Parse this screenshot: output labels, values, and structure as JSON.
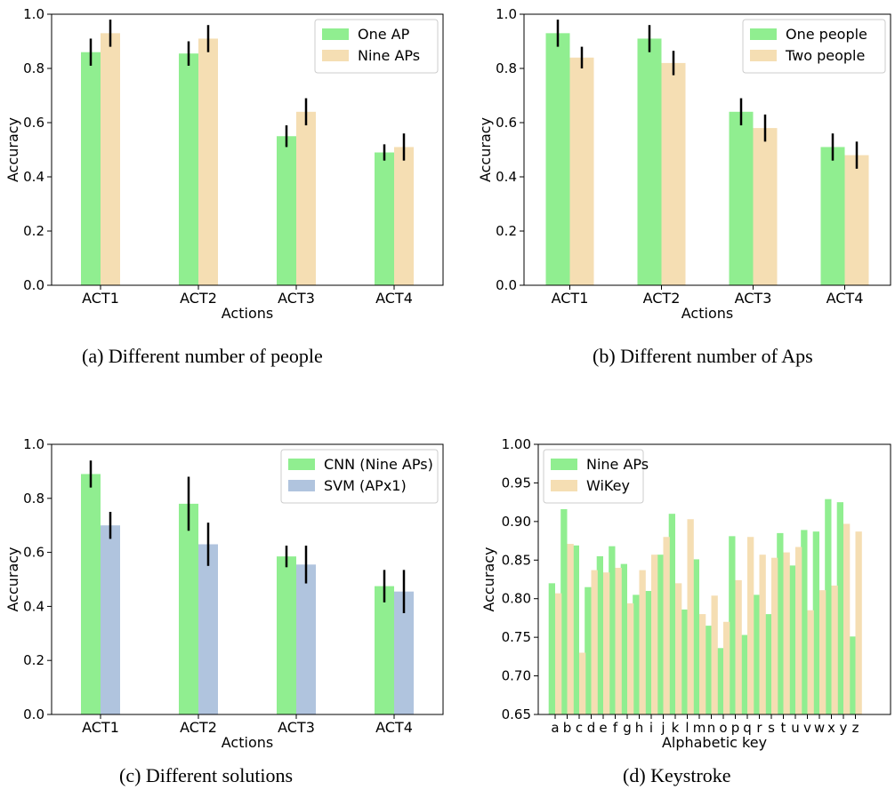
{
  "chart_data": [
    {
      "type": "bar",
      "caption": "(a) Different number of people",
      "xlabel": "Actions",
      "ylabel": "Accuracy",
      "ylim": [
        0,
        1.0
      ],
      "yticks": [
        "0.0",
        "0.2",
        "0.4",
        "0.6",
        "0.8",
        "1.0"
      ],
      "ytick_values": [
        0,
        0.2,
        0.4,
        0.6,
        0.8,
        1.0
      ],
      "categories": [
        "ACT1",
        "ACT2",
        "ACT3",
        "ACT4"
      ],
      "legend_position": "top-right",
      "series": [
        {
          "name": "One AP",
          "color": "#90EE90",
          "values": [
            0.86,
            0.855,
            0.55,
            0.49
          ],
          "errors": [
            0.05,
            0.045,
            0.04,
            0.03
          ]
        },
        {
          "name": "Nine APs",
          "color": "#F5DEB3",
          "values": [
            0.93,
            0.91,
            0.64,
            0.51
          ],
          "errors": [
            0.05,
            0.05,
            0.05,
            0.05
          ]
        }
      ]
    },
    {
      "type": "bar",
      "caption": "(b) Different number of Aps",
      "xlabel": "Actions",
      "ylabel": "Accuracy",
      "ylim": [
        0,
        1.0
      ],
      "yticks": [
        "0.0",
        "0.2",
        "0.4",
        "0.6",
        "0.8",
        "1.0"
      ],
      "ytick_values": [
        0,
        0.2,
        0.4,
        0.6,
        0.8,
        1.0
      ],
      "categories": [
        "ACT1",
        "ACT2",
        "ACT3",
        "ACT4"
      ],
      "legend_position": "top-right",
      "series": [
        {
          "name": "One people",
          "color": "#90EE90",
          "values": [
            0.93,
            0.91,
            0.64,
            0.51
          ],
          "errors": [
            0.05,
            0.05,
            0.05,
            0.05
          ]
        },
        {
          "name": "Two people",
          "color": "#F5DEB3",
          "values": [
            0.84,
            0.82,
            0.58,
            0.48
          ],
          "errors": [
            0.04,
            0.045,
            0.05,
            0.05
          ]
        }
      ]
    },
    {
      "type": "bar",
      "caption": "(c) Different solutions",
      "xlabel": "Actions",
      "ylabel": "Accuracy",
      "ylim": [
        0,
        1.0
      ],
      "yticks": [
        "0.0",
        "0.2",
        "0.4",
        "0.6",
        "0.8",
        "1.0"
      ],
      "ytick_values": [
        0,
        0.2,
        0.4,
        0.6,
        0.8,
        1.0
      ],
      "categories": [
        "ACT1",
        "ACT2",
        "ACT3",
        "ACT4"
      ],
      "legend_position": "top-right",
      "series": [
        {
          "name": "CNN (Nine APs)",
          "color": "#90EE90",
          "values": [
            0.89,
            0.78,
            0.585,
            0.475
          ],
          "errors": [
            0.05,
            0.1,
            0.04,
            0.06
          ]
        },
        {
          "name": "SVM (APx1)",
          "color": "#B0C4DE",
          "values": [
            0.7,
            0.63,
            0.555,
            0.455
          ],
          "errors": [
            0.05,
            0.08,
            0.07,
            0.08
          ]
        }
      ]
    },
    {
      "type": "bar",
      "caption": "(d) Keystroke",
      "xlabel": "Alphabetic key",
      "ylabel": "Accuracy",
      "ylim": [
        0.65,
        1.0
      ],
      "yticks": [
        "0.65",
        "0.70",
        "0.75",
        "0.80",
        "0.85",
        "0.90",
        "0.95",
        "1.00"
      ],
      "ytick_values": [
        0.65,
        0.7,
        0.75,
        0.8,
        0.85,
        0.9,
        0.95,
        1.0
      ],
      "categories": [
        "a",
        "b",
        "c",
        "d",
        "e",
        "f",
        "g",
        "h",
        "i",
        "j",
        "k",
        "l",
        "m",
        "n",
        "o",
        "p",
        "q",
        "r",
        "s",
        "t",
        "u",
        "v",
        "w",
        "x",
        "y",
        "z"
      ],
      "legend_position": "top-left",
      "series": [
        {
          "name": "Nine APs",
          "color": "#90EE90",
          "values": [
            0.82,
            0.916,
            0.869,
            0.815,
            0.855,
            0.868,
            0.845,
            0.805,
            0.81,
            0.857,
            0.91,
            0.786,
            0.851,
            0.765,
            0.736,
            0.881,
            0.753,
            0.805,
            0.78,
            0.885,
            0.843,
            0.889,
            0.887,
            0.929,
            0.925,
            0.751
          ]
        },
        {
          "name": "WiKey",
          "color": "#F5DEB3",
          "values": [
            0.807,
            0.871,
            0.73,
            0.837,
            0.834,
            0.84,
            0.794,
            0.837,
            0.857,
            0.88,
            0.82,
            0.903,
            0.78,
            0.804,
            0.77,
            0.824,
            0.88,
            0.857,
            0.853,
            0.86,
            0.867,
            0.785,
            0.811,
            0.817,
            0.897,
            0.887
          ]
        }
      ]
    }
  ]
}
